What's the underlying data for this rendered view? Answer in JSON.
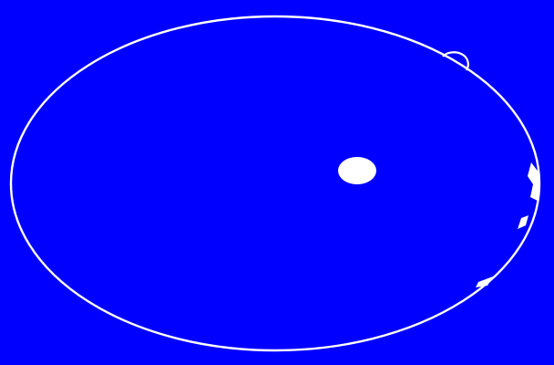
{
  "colors": {
    "background": "#0000FF",
    "outline": "#FFFFFF",
    "blob": "#FFFFFF",
    "dot": "#FFFFFF"
  },
  "shapes": {
    "orbit_ring": "ellipse-outline",
    "top_right_bump": "small-arc",
    "center_dot": "filled-ellipse",
    "right_edge_fragments": "white-flecks"
  }
}
